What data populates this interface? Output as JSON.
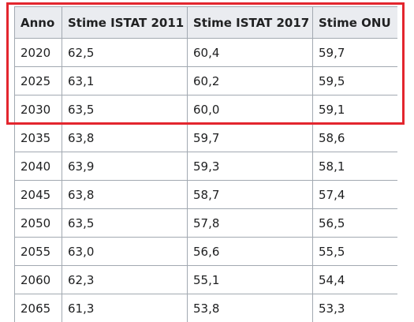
{
  "table": {
    "headers": [
      "Anno",
      "Stime ISTAT 2011",
      "Stime ISTAT 2017",
      "Stime ONU"
    ],
    "rows": [
      [
        "2020",
        "62,5",
        "60,4",
        "59,7"
      ],
      [
        "2025",
        "63,1",
        "60,2",
        "59,5"
      ],
      [
        "2030",
        "63,5",
        "60,0",
        "59,1"
      ],
      [
        "2035",
        "63,8",
        "59,7",
        "58,6"
      ],
      [
        "2040",
        "63,9",
        "59,3",
        "58,1"
      ],
      [
        "2045",
        "63,8",
        "58,7",
        "57,4"
      ],
      [
        "2050",
        "63,5",
        "57,8",
        "56,5"
      ],
      [
        "2055",
        "63,0",
        "56,6",
        "55,5"
      ],
      [
        "2060",
        "62,3",
        "55,1",
        "54,4"
      ],
      [
        "2065",
        "61,3",
        "53,8",
        "53,3"
      ]
    ]
  }
}
